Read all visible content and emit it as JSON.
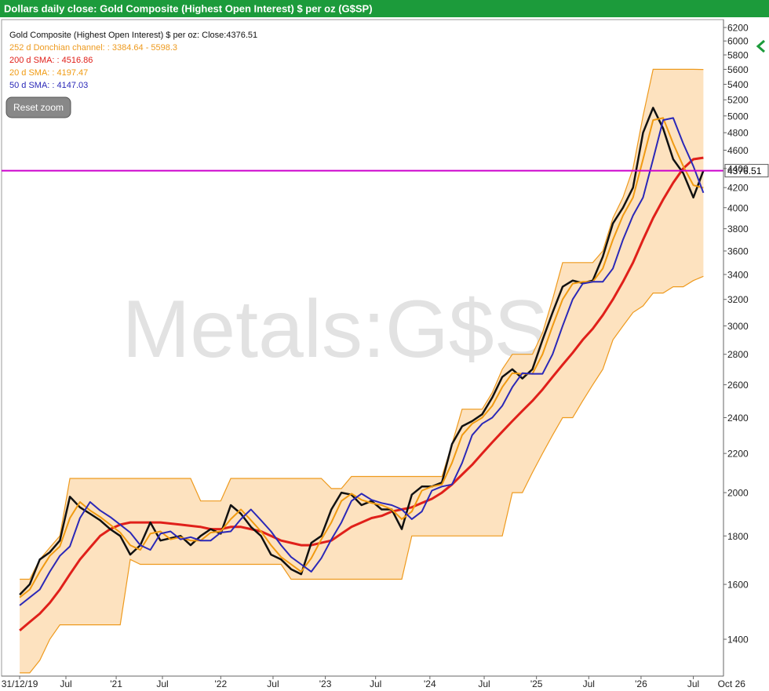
{
  "chart_data": {
    "type": "line",
    "title": "Dollars daily close: Gold Composite (Highest Open Interest) $ per oz (G$SP)",
    "watermark": "Metals:G$SP",
    "reset_button": "Reset zoom",
    "log_scale": true,
    "grid": false,
    "legend_position": "top-left",
    "last_line_color": "#cc00cc",
    "x": [
      0,
      5,
      10,
      15,
      20,
      25,
      30,
      35,
      40,
      45,
      50,
      55,
      60,
      65,
      70,
      75,
      80,
      85,
      90,
      95,
      100,
      105,
      110,
      115,
      120,
      125,
      130,
      135,
      140,
      145,
      150,
      155,
      160,
      165,
      170,
      175,
      180,
      185,
      190,
      195,
      200,
      205,
      210,
      215,
      220,
      225,
      230,
      235,
      240,
      245,
      250,
      255,
      260,
      265,
      270,
      275,
      280,
      285,
      290,
      295,
      300,
      305,
      310,
      315,
      320,
      325,
      330,
      335,
      340
    ],
    "xlim": [
      -9,
      350
    ],
    "xticks": [
      {
        "value": 0,
        "label": "31/12/19"
      },
      {
        "value": 23,
        "label": "Jul"
      },
      {
        "value": 48,
        "label": "'21"
      },
      {
        "value": 71,
        "label": "Jul"
      },
      {
        "value": 100,
        "label": "'22"
      },
      {
        "value": 126,
        "label": "Jul"
      },
      {
        "value": 152,
        "label": "'23"
      },
      {
        "value": 177,
        "label": "Jul"
      },
      {
        "value": 204,
        "label": "'24"
      },
      {
        "value": 231,
        "label": "Jul"
      },
      {
        "value": 257,
        "label": "'25"
      },
      {
        "value": 283,
        "label": "Jul"
      },
      {
        "value": 309,
        "label": "'26"
      },
      {
        "value": 335,
        "label": "Jul"
      },
      {
        "value": 354,
        "label": "Oct 26"
      }
    ],
    "ylim": [
      1280,
      6320
    ],
    "yticks": [
      1400,
      1600,
      1800,
      2000,
      2200,
      2400,
      2600,
      2800,
      3000,
      3200,
      3400,
      3600,
      3800,
      4000,
      4200,
      4400,
      4600,
      4800,
      5000,
      5200,
      5400,
      5600,
      5800,
      6000,
      6200
    ],
    "channel": {
      "name": "252 d Donchian channel: : 3384.64 - 5598.3",
      "color": "#ee9a1e",
      "fill": "#fde2bf",
      "upper": [
        1620,
        1620,
        1700,
        1750,
        1800,
        2070,
        2070,
        2070,
        2070,
        2070,
        2070,
        2070,
        2070,
        2070,
        2070,
        2070,
        2070,
        2070,
        1960,
        1960,
        1960,
        2070,
        2070,
        2070,
        2070,
        2070,
        2070,
        2070,
        2070,
        2070,
        2070,
        2020,
        2020,
        2080,
        2080,
        2080,
        2080,
        2080,
        2080,
        2080,
        2080,
        2080,
        2080,
        2250,
        2450,
        2450,
        2450,
        2550,
        2700,
        2800,
        2800,
        2800,
        2950,
        3200,
        3500,
        3500,
        3500,
        3500,
        3600,
        3900,
        4100,
        4400,
        5000,
        5600,
        5600,
        5600,
        5600,
        5600,
        5598.3
      ],
      "lower": [
        1290,
        1290,
        1330,
        1400,
        1450,
        1450,
        1450,
        1450,
        1450,
        1450,
        1450,
        1700,
        1680,
        1680,
        1680,
        1680,
        1680,
        1680,
        1680,
        1680,
        1680,
        1680,
        1680,
        1680,
        1680,
        1680,
        1680,
        1620,
        1620,
        1620,
        1620,
        1620,
        1620,
        1620,
        1620,
        1620,
        1620,
        1620,
        1620,
        1800,
        1800,
        1800,
        1800,
        1800,
        1800,
        1800,
        1800,
        1800,
        1800,
        2000,
        2000,
        2100,
        2200,
        2300,
        2400,
        2400,
        2500,
        2600,
        2700,
        2900,
        3000,
        3100,
        3150,
        3250,
        3250,
        3300,
        3300,
        3350,
        3384.64
      ]
    },
    "series": [
      {
        "name": "Gold Composite (Highest Open Interest) $ per oz: Close:4376.51",
        "color": "#111111",
        "values": [
          1560,
          1600,
          1700,
          1730,
          1780,
          1980,
          1930,
          1900,
          1870,
          1830,
          1800,
          1720,
          1760,
          1860,
          1780,
          1790,
          1800,
          1760,
          1800,
          1830,
          1810,
          1940,
          1900,
          1840,
          1800,
          1720,
          1700,
          1660,
          1640,
          1770,
          1800,
          1920,
          2000,
          1990,
          1940,
          1960,
          1920,
          1920,
          1830,
          1990,
          2030,
          2030,
          2050,
          2250,
          2350,
          2380,
          2420,
          2520,
          2650,
          2700,
          2640,
          2700,
          2900,
          3100,
          3300,
          3350,
          3330,
          3350,
          3550,
          3850,
          4000,
          4200,
          4800,
          5100,
          4850,
          4500,
          4350,
          4100,
          4376.51
        ]
      },
      {
        "name": "200 d SMA: : 4516.86",
        "color": "#e0201a",
        "values": [
          1430,
          1460,
          1490,
          1530,
          1580,
          1640,
          1700,
          1750,
          1800,
          1830,
          1850,
          1860,
          1860,
          1860,
          1860,
          1855,
          1850,
          1845,
          1840,
          1830,
          1830,
          1840,
          1840,
          1830,
          1820,
          1800,
          1780,
          1770,
          1760,
          1760,
          1770,
          1780,
          1810,
          1840,
          1860,
          1880,
          1890,
          1910,
          1920,
          1930,
          1950,
          1970,
          2000,
          2040,
          2090,
          2140,
          2200,
          2260,
          2320,
          2380,
          2440,
          2500,
          2570,
          2650,
          2730,
          2810,
          2900,
          2980,
          3080,
          3200,
          3340,
          3500,
          3700,
          3900,
          4080,
          4250,
          4400,
          4500,
          4516.86
        ]
      },
      {
        "name": "20 d SMA: : 4197.47",
        "color": "#f09a10",
        "values": [
          1550,
          1580,
          1650,
          1715,
          1755,
          1880,
          1955,
          1915,
          1885,
          1850,
          1815,
          1760,
          1740,
          1810,
          1820,
          1785,
          1795,
          1780,
          1780,
          1815,
          1820,
          1875,
          1920,
          1870,
          1820,
          1760,
          1710,
          1680,
          1650,
          1705,
          1785,
          1860,
          1960,
          1995,
          1965,
          1950,
          1940,
          1920,
          1875,
          1910,
          2010,
          2030,
          2040,
          2150,
          2300,
          2365,
          2400,
          2470,
          2585,
          2675,
          2670,
          2670,
          2800,
          3000,
          3200,
          3325,
          3340,
          3340,
          3450,
          3700,
          3925,
          4100,
          4500,
          4950,
          4975,
          4675,
          4425,
          4225,
          4197.47
        ]
      },
      {
        "name": "50 d SMA: : 4147.03",
        "color": "#2a28b8",
        "values": [
          1520,
          1550,
          1580,
          1650,
          1715,
          1755,
          1880,
          1955,
          1915,
          1885,
          1850,
          1815,
          1760,
          1740,
          1810,
          1820,
          1785,
          1795,
          1780,
          1780,
          1815,
          1820,
          1875,
          1920,
          1870,
          1820,
          1760,
          1710,
          1680,
          1650,
          1705,
          1785,
          1860,
          1960,
          1995,
          1965,
          1950,
          1940,
          1920,
          1875,
          1910,
          2010,
          2030,
          2040,
          2150,
          2300,
          2365,
          2400,
          2470,
          2585,
          2675,
          2670,
          2670,
          2800,
          3000,
          3200,
          3325,
          3340,
          3340,
          3450,
          3700,
          3925,
          4100,
          4500,
          4950,
          4975,
          4675,
          4425,
          4147.03
        ]
      }
    ]
  }
}
